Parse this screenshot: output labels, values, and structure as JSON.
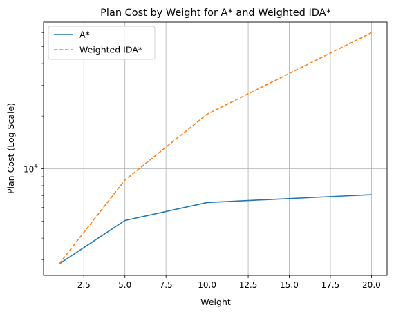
{
  "chart_data": {
    "type": "line",
    "title": "Plan Cost by Weight for A* and Weighted IDA*",
    "xlabel": "Weight",
    "ylabel": "Plan Cost (Log Scale)",
    "yscale": "log",
    "xlim": [
      0.05,
      20.95
    ],
    "ylim": [
      2450,
      69000
    ],
    "x_ticks": [
      2.5,
      5.0,
      7.5,
      10.0,
      12.5,
      15.0,
      17.5,
      20.0
    ],
    "x_tick_labels": [
      "2.5",
      "5.0",
      "7.5",
      "10.0",
      "12.5",
      "15.0",
      "17.5",
      "20.0"
    ],
    "y_major_ticks": [
      10000
    ],
    "y_major_tick_base": "10",
    "y_major_tick_exp": "4",
    "grid": true,
    "legend_position": "upper left",
    "x": [
      1,
      5,
      10,
      20
    ],
    "series": [
      {
        "name": "A*",
        "values": [
          2850,
          5050,
          6400,
          7100
        ],
        "color": "#1f77b4",
        "style": "solid"
      },
      {
        "name": "Weighted IDA*",
        "values": [
          2850,
          8600,
          20500,
          60000
        ],
        "color": "#ff7f0e",
        "style": "dashed"
      }
    ]
  }
}
